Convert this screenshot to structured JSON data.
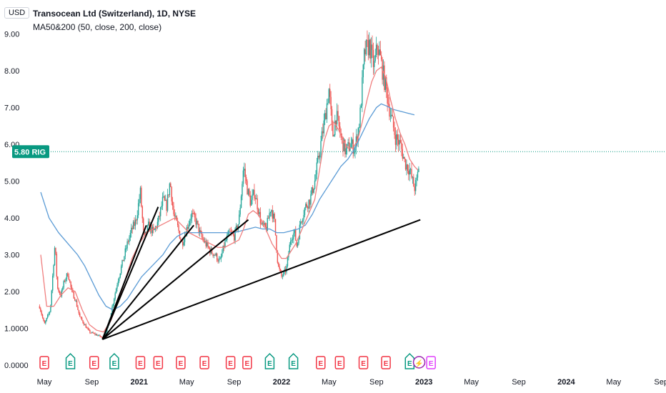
{
  "currency": "USD",
  "title": "Transocean Ltd (Switzerland), 1D, NYSE",
  "indicator": "MA50&200 (50, close, 200, close)",
  "price_tag": {
    "value": "5.80",
    "ticker": "RIG"
  },
  "colors": {
    "up": "#26a69a",
    "down": "#ef5350",
    "ma50": "#f07f7f",
    "ma200": "#5b9bd5",
    "trend": "#000000",
    "pricetag": "#089981",
    "earnings": "#f23645",
    "dividend": "#089981",
    "split": "#9c27b0"
  },
  "chart_data": {
    "type": "candlestick",
    "y_ticks": [
      "9.00",
      "8.00",
      "7.00",
      "6.00",
      "5.00",
      "4.00",
      "3.00",
      "2.00",
      "1.0000",
      "0.0000"
    ],
    "ylim": [
      0,
      9.6
    ],
    "x_ticks": [
      {
        "label": "May",
        "t": 0,
        "bold": false
      },
      {
        "label": "Sep",
        "t": 4,
        "bold": false
      },
      {
        "label": "2021",
        "t": 8,
        "bold": true
      },
      {
        "label": "May",
        "t": 12,
        "bold": false
      },
      {
        "label": "Sep",
        "t": 16,
        "bold": false
      },
      {
        "label": "2022",
        "t": 20,
        "bold": true
      },
      {
        "label": "May",
        "t": 24,
        "bold": false
      },
      {
        "label": "Sep",
        "t": 28,
        "bold": false
      },
      {
        "label": "2023",
        "t": 32,
        "bold": true
      },
      {
        "label": "May",
        "t": 36,
        "bold": false
      },
      {
        "label": "Sep",
        "t": 40,
        "bold": false
      },
      {
        "label": "2024",
        "t": 44,
        "bold": true
      },
      {
        "label": "May",
        "t": 48,
        "bold": false
      },
      {
        "label": "Sep",
        "t": 52,
        "bold": false
      }
    ],
    "price": [
      [
        -0.4,
        1.6
      ],
      [
        0,
        1.1
      ],
      [
        0.5,
        1.5
      ],
      [
        0.9,
        3.3
      ],
      [
        1.1,
        2.1
      ],
      [
        1.4,
        1.9
      ],
      [
        1.7,
        2.3
      ],
      [
        2.0,
        2.5
      ],
      [
        2.3,
        2.0
      ],
      [
        2.6,
        1.8
      ],
      [
        3.0,
        1.3
      ],
      [
        3.4,
        1.1
      ],
      [
        3.8,
        0.9
      ],
      [
        4.2,
        0.85
      ],
      [
        4.6,
        0.8
      ],
      [
        5.0,
        0.72
      ],
      [
        5.4,
        1.1
      ],
      [
        5.8,
        1.7
      ],
      [
        6.2,
        2.3
      ],
      [
        6.6,
        2.8
      ],
      [
        7.0,
        3.3
      ],
      [
        7.4,
        3.7
      ],
      [
        7.7,
        3.9
      ],
      [
        8.1,
        4.7
      ],
      [
        8.4,
        3.4
      ],
      [
        8.8,
        3.8
      ],
      [
        9.2,
        3.6
      ],
      [
        9.6,
        3.9
      ],
      [
        10.0,
        4.5
      ],
      [
        10.3,
        4.3
      ],
      [
        10.6,
        5.0
      ],
      [
        10.9,
        4.1
      ],
      [
        11.2,
        3.8
      ],
      [
        11.6,
        3.3
      ],
      [
        12.0,
        3.7
      ],
      [
        12.4,
        4.1
      ],
      [
        12.8,
        3.9
      ],
      [
        13.2,
        3.5
      ],
      [
        13.6,
        3.3
      ],
      [
        14.0,
        3.1
      ],
      [
        14.4,
        3.0
      ],
      [
        14.8,
        2.8
      ],
      [
        15.2,
        3.3
      ],
      [
        15.6,
        3.6
      ],
      [
        16.0,
        3.5
      ],
      [
        16.4,
        3.9
      ],
      [
        16.8,
        5.4
      ],
      [
        17.1,
        4.8
      ],
      [
        17.4,
        4.4
      ],
      [
        17.7,
        4.7
      ],
      [
        18.0,
        4.3
      ],
      [
        18.3,
        3.8
      ],
      [
        18.7,
        3.7
      ],
      [
        19.1,
        4.3
      ],
      [
        19.4,
        3.9
      ],
      [
        19.7,
        2.7
      ],
      [
        20.0,
        2.4
      ],
      [
        20.4,
        2.6
      ],
      [
        20.8,
        3.5
      ],
      [
        21.1,
        3.6
      ],
      [
        21.3,
        3.2
      ],
      [
        21.6,
        3.9
      ],
      [
        22.0,
        4.3
      ],
      [
        22.4,
        4.5
      ],
      [
        22.8,
        5.0
      ],
      [
        23.2,
        5.8
      ],
      [
        23.6,
        6.6
      ],
      [
        24.0,
        7.5
      ],
      [
        24.3,
        6.2
      ],
      [
        24.6,
        6.8
      ],
      [
        25.0,
        6.2
      ],
      [
        25.4,
        5.8
      ],
      [
        25.8,
        6.0
      ],
      [
        26.2,
        5.9
      ],
      [
        26.6,
        6.7
      ],
      [
        27.0,
        8.5
      ],
      [
        27.4,
        8.7
      ],
      [
        27.8,
        8.1
      ],
      [
        28.1,
        8.7
      ],
      [
        28.4,
        8.2
      ],
      [
        28.8,
        7.5
      ],
      [
        29.2,
        6.8
      ],
      [
        29.6,
        6.2
      ],
      [
        30.0,
        6.0
      ],
      [
        30.4,
        5.5
      ],
      [
        30.8,
        5.3
      ],
      [
        31.2,
        4.8
      ],
      [
        31.4,
        5.0
      ],
      [
        31.6,
        5.5
      ]
    ],
    "ma50": [
      [
        -0.3,
        3.0
      ],
      [
        0.2,
        1.6
      ],
      [
        0.8,
        1.6
      ],
      [
        1.4,
        1.9
      ],
      [
        2.0,
        2.1
      ],
      [
        2.6,
        2.0
      ],
      [
        3.2,
        1.5
      ],
      [
        3.8,
        1.1
      ],
      [
        4.4,
        0.95
      ],
      [
        5.0,
        0.9
      ],
      [
        5.6,
        1.2
      ],
      [
        6.2,
        1.7
      ],
      [
        6.8,
        2.3
      ],
      [
        7.4,
        2.9
      ],
      [
        8.0,
        3.3
      ],
      [
        8.6,
        3.6
      ],
      [
        9.2,
        3.7
      ],
      [
        9.8,
        3.8
      ],
      [
        10.4,
        3.9
      ],
      [
        11.0,
        4.0
      ],
      [
        11.6,
        3.8
      ],
      [
        12.2,
        3.6
      ],
      [
        12.8,
        3.5
      ],
      [
        13.4,
        3.4
      ],
      [
        14.0,
        3.3
      ],
      [
        14.6,
        3.2
      ],
      [
        15.2,
        3.2
      ],
      [
        15.8,
        3.3
      ],
      [
        16.4,
        3.4
      ],
      [
        16.8,
        3.7
      ],
      [
        17.2,
        4.1
      ],
      [
        17.6,
        4.2
      ],
      [
        18.0,
        4.1
      ],
      [
        18.4,
        3.9
      ],
      [
        18.8,
        3.6
      ],
      [
        19.2,
        3.3
      ],
      [
        19.6,
        3.1
      ],
      [
        20.0,
        2.9
      ],
      [
        20.4,
        2.9
      ],
      [
        20.8,
        3.1
      ],
      [
        21.2,
        3.3
      ],
      [
        21.6,
        3.6
      ],
      [
        22.0,
        3.9
      ],
      [
        22.4,
        4.2
      ],
      [
        22.8,
        4.5
      ],
      [
        23.2,
        5.3
      ],
      [
        23.6,
        6.1
      ],
      [
        24.0,
        6.5
      ],
      [
        24.4,
        6.6
      ],
      [
        24.8,
        6.4
      ],
      [
        25.2,
        6.1
      ],
      [
        25.6,
        5.9
      ],
      [
        26.0,
        5.9
      ],
      [
        26.4,
        6.1
      ],
      [
        26.8,
        6.6
      ],
      [
        27.2,
        7.2
      ],
      [
        27.6,
        7.7
      ],
      [
        28.0,
        8.0
      ],
      [
        28.4,
        8.1
      ],
      [
        28.8,
        7.8
      ],
      [
        29.2,
        7.2
      ],
      [
        29.6,
        6.7
      ],
      [
        30.0,
        6.3
      ],
      [
        30.4,
        6.0
      ],
      [
        30.8,
        5.6
      ],
      [
        31.2,
        5.4
      ],
      [
        31.5,
        5.3
      ]
    ],
    "ma200": [
      [
        -0.3,
        4.7
      ],
      [
        0.4,
        4.0
      ],
      [
        1.2,
        3.6
      ],
      [
        2.0,
        3.3
      ],
      [
        2.8,
        3.0
      ],
      [
        3.4,
        2.7
      ],
      [
        4.0,
        2.3
      ],
      [
        4.6,
        1.9
      ],
      [
        5.2,
        1.6
      ],
      [
        5.8,
        1.5
      ],
      [
        6.4,
        1.6
      ],
      [
        7.0,
        1.8
      ],
      [
        7.6,
        2.1
      ],
      [
        8.2,
        2.4
      ],
      [
        8.8,
        2.6
      ],
      [
        9.4,
        2.8
      ],
      [
        10.0,
        3.0
      ],
      [
        10.6,
        3.3
      ],
      [
        11.2,
        3.5
      ],
      [
        11.8,
        3.6
      ],
      [
        12.4,
        3.6
      ],
      [
        13.0,
        3.6
      ],
      [
        13.6,
        3.6
      ],
      [
        14.2,
        3.6
      ],
      [
        14.8,
        3.6
      ],
      [
        15.4,
        3.6
      ],
      [
        16.0,
        3.6
      ],
      [
        16.6,
        3.65
      ],
      [
        17.2,
        3.7
      ],
      [
        17.8,
        3.75
      ],
      [
        18.4,
        3.7
      ],
      [
        19.0,
        3.7
      ],
      [
        19.6,
        3.6
      ],
      [
        20.2,
        3.6
      ],
      [
        20.8,
        3.65
      ],
      [
        21.4,
        3.7
      ],
      [
        22.0,
        3.8
      ],
      [
        22.6,
        4.1
      ],
      [
        23.2,
        4.5
      ],
      [
        23.8,
        4.8
      ],
      [
        24.4,
        5.1
      ],
      [
        25.0,
        5.4
      ],
      [
        25.6,
        5.6
      ],
      [
        26.2,
        5.9
      ],
      [
        26.8,
        6.3
      ],
      [
        27.4,
        6.7
      ],
      [
        28.0,
        7.0
      ],
      [
        28.4,
        7.1
      ],
      [
        28.8,
        7.05
      ],
      [
        29.4,
        6.95
      ],
      [
        30.0,
        6.9
      ],
      [
        30.6,
        6.85
      ],
      [
        31.2,
        6.8
      ]
    ],
    "trendlines": [
      [
        [
          4.9,
          0.7
        ],
        [
          8.6,
          3.8
        ]
      ],
      [
        [
          4.9,
          0.7
        ],
        [
          9.6,
          4.3
        ]
      ],
      [
        [
          4.9,
          0.7
        ],
        [
          12.6,
          3.8
        ]
      ],
      [
        [
          4.9,
          0.7
        ],
        [
          17.2,
          3.95
        ]
      ],
      [
        [
          4.9,
          0.7
        ],
        [
          31.7,
          3.95
        ]
      ]
    ],
    "event_markers": [
      {
        "t": 0,
        "label": "E",
        "kind": "earnings"
      },
      {
        "t": 2.2,
        "label": "E",
        "kind": "dividend"
      },
      {
        "t": 4.2,
        "label": "E",
        "kind": "earnings"
      },
      {
        "t": 5.9,
        "label": "E",
        "kind": "dividend"
      },
      {
        "t": 8.1,
        "label": "E",
        "kind": "earnings"
      },
      {
        "t": 9.6,
        "label": "E",
        "kind": "earnings"
      },
      {
        "t": 11.5,
        "label": "E",
        "kind": "earnings"
      },
      {
        "t": 13.5,
        "label": "E",
        "kind": "earnings"
      },
      {
        "t": 15.7,
        "label": "E",
        "kind": "earnings"
      },
      {
        "t": 17.1,
        "label": "E",
        "kind": "earnings"
      },
      {
        "t": 19.0,
        "label": "E",
        "kind": "dividend"
      },
      {
        "t": 21.0,
        "label": "E",
        "kind": "dividend"
      },
      {
        "t": 23.3,
        "label": "E",
        "kind": "earnings"
      },
      {
        "t": 24.9,
        "label": "E",
        "kind": "earnings"
      },
      {
        "t": 26.9,
        "label": "E",
        "kind": "earnings"
      },
      {
        "t": 28.8,
        "label": "E",
        "kind": "earnings"
      },
      {
        "t": 30.8,
        "label": "E",
        "kind": "dividend"
      },
      {
        "t": 31.6,
        "label": "⚡",
        "kind": "split"
      },
      {
        "t": 32.6,
        "label": "E",
        "kind": "split-outline"
      }
    ]
  }
}
